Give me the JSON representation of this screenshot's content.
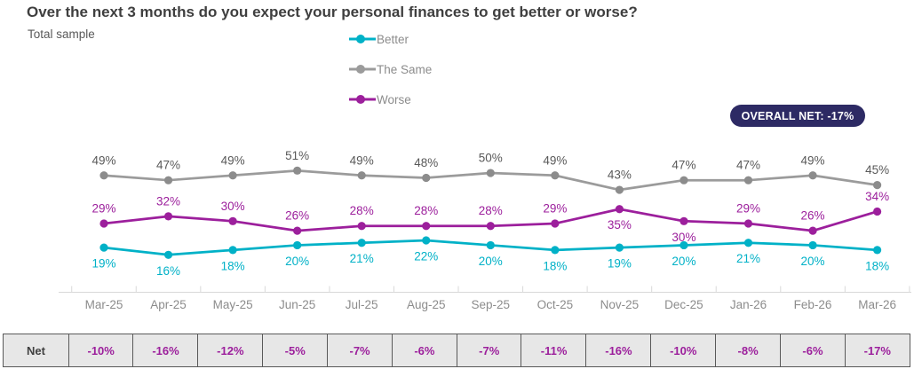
{
  "title": "Over the next 3 months do you expect your personal finances to get better or worse?",
  "subtitle": "Total sample",
  "legend": [
    {
      "label": "Better",
      "color": "#00b1c7"
    },
    {
      "label": "The Same",
      "color": "#9b9b9b"
    },
    {
      "label": "Worse",
      "color": "#9c1f9c"
    }
  ],
  "overall_net_badge": "OVERALL NET: -17%",
  "colors": {
    "badge_background": "#2d2a64",
    "badge_text": "#ffffff",
    "axis_line": "#d9d9d9",
    "axis_label_text": "#8c8c8c",
    "same_label_text": "#595959",
    "net_value_text": "#9c1f9c",
    "net_table_background": "#e7e7e7",
    "net_table_border": "#595959",
    "title_text": "#3f3f3f"
  },
  "chart_data": {
    "type": "line",
    "title": "Over the next 3 months do you expect your personal finances to get better or worse?",
    "subtitle": "Total sample",
    "categories": [
      "Mar-25",
      "Apr-25",
      "May-25",
      "Jun-25",
      "Jul-25",
      "Aug-25",
      "Sep-25",
      "Oct-25",
      "Nov-25",
      "Dec-25",
      "Jan-26",
      "Feb-26",
      "Mar-26"
    ],
    "series": [
      {
        "name": "Better",
        "color": "#00b1c7",
        "label_color": "#00b1c7",
        "dot_color": "#00b1c7",
        "values": [
          19,
          16,
          18,
          20,
          21,
          22,
          20,
          18,
          19,
          20,
          21,
          20,
          18
        ]
      },
      {
        "name": "The Same",
        "color": "#9b9b9b",
        "label_color": "#595959",
        "dot_color": "#8c8c8c",
        "values": [
          49,
          47,
          49,
          51,
          49,
          48,
          50,
          49,
          43,
          47,
          47,
          49,
          45
        ]
      },
      {
        "name": "Worse",
        "color": "#9c1f9c",
        "label_color": "#9c1f9c",
        "dot_color": "#9c1f9c",
        "values": [
          29,
          32,
          30,
          26,
          28,
          28,
          28,
          29,
          35,
          30,
          29,
          26,
          34
        ]
      }
    ],
    "net": {
      "label": "Net",
      "values": [
        "-10%",
        "-16%",
        "-12%",
        "-5%",
        "-7%",
        "-6%",
        "-7%",
        "-11%",
        "-16%",
        "-10%",
        "-8%",
        "-6%",
        "-17%"
      ]
    },
    "value_suffix": "%",
    "data_labels": true,
    "grid": false,
    "y_axis": "hidden",
    "ylim": [
      0,
      60
    ],
    "legend_position": "top-center",
    "annotations": [
      "OVERALL NET: -17%"
    ]
  }
}
